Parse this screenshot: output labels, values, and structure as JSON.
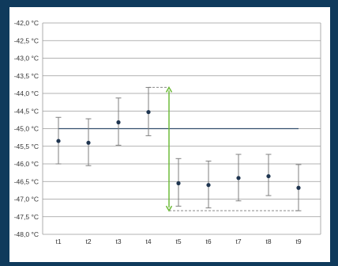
{
  "colors": {
    "page_background": "#0f3a5c",
    "grid": "#9a9a9a",
    "points": "#1f3550",
    "error_bars": "#7f7f7f",
    "reference_line": "#34506e",
    "arrow": "#6fbb3a",
    "dashed": "#8a8a8a"
  },
  "chart_data": {
    "type": "scatter",
    "title": "",
    "xlabel": "",
    "ylabel": "",
    "categories": [
      "t1",
      "t2",
      "t3",
      "t4",
      "t5",
      "t6",
      "t7",
      "t8",
      "t9"
    ],
    "ylim": [
      -48.0,
      -42.0
    ],
    "y_ticks": [
      -42.0,
      -42.5,
      -43.0,
      -43.5,
      -44.0,
      -44.5,
      -45.0,
      -45.5,
      -46.0,
      -46.5,
      -47.0,
      -47.5,
      -48.0
    ],
    "y_tick_labels": [
      "-42,0 °C",
      "-42,5 °C",
      "-43,0 °C",
      "-43,5 °C",
      "-44,0 °C",
      "-44,5 °C",
      "-45,0 °C",
      "-45,5 °C",
      "-46,0 °C",
      "-46,5 °C",
      "-47,0 °C",
      "-47,5 °C",
      "-48,0 °C"
    ],
    "grid": true,
    "series": [
      {
        "values": [
          -45.35,
          -45.4,
          -44.82,
          -44.53,
          -46.55,
          -46.6,
          -46.4,
          -46.35,
          -46.68
        ],
        "error_low": [
          -46.0,
          -46.05,
          -45.47,
          -45.2,
          -47.2,
          -47.25,
          -47.05,
          -46.9,
          -47.33
        ],
        "error_high": [
          -44.68,
          -44.72,
          -44.13,
          -43.83,
          -45.85,
          -45.92,
          -45.73,
          -45.73,
          -46.02
        ]
      }
    ],
    "reference_line": {
      "y": -45.0,
      "from_category": "t1",
      "to_category": "t9"
    },
    "annotations": [
      {
        "type": "double-arrow",
        "from_y": -43.83,
        "to_y": -47.33,
        "between": [
          "t4",
          "t5"
        ]
      },
      {
        "type": "dashed-line",
        "y": -43.83,
        "from_category": "t4",
        "to": "arrow"
      },
      {
        "type": "dashed-line",
        "y": -47.33,
        "from": "arrow",
        "to_category": "t9"
      }
    ]
  }
}
